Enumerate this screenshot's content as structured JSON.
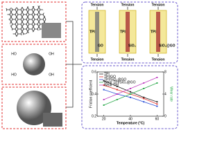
{
  "structures": {
    "hydroxyl": [
      "HO",
      "OH",
      "HO",
      "OH"
    ]
  },
  "panels": [
    {
      "top": "Tension",
      "matrix": "TPI",
      "filler": "GO",
      "bottom": "Tension"
    },
    {
      "top": "Tension",
      "matrix": "TPI",
      "filler": "SiO₂",
      "bottom": "Tension"
    },
    {
      "top": "Tension",
      "matrix": "TPI",
      "filler": "SiO₂@GO",
      "bottom": "Tension"
    }
  ],
  "chart": {
    "xlabel": "Temperature (°C)",
    "ylabel": "Friction coefficient",
    "y2label": "Wear rate",
    "x": [
      20,
      30,
      40,
      50,
      60
    ],
    "xlim": [
      15,
      65
    ],
    "xticks": [
      20,
      40,
      60
    ],
    "ylim": [
      0.2,
      0.6
    ],
    "yticks": [
      0.2,
      0.4,
      0.6
    ],
    "y2lim": [
      0,
      8
    ],
    "y2ticks": [
      0,
      4,
      8
    ],
    "series": [
      {
        "name": "TPI",
        "color": "#222222",
        "values": [
          0.52,
          0.47,
          0.42,
          0.37,
          0.33
        ]
      },
      {
        "name": "TPI/GO",
        "color": "#e0302a",
        "values": [
          0.48,
          0.44,
          0.4,
          0.36,
          0.31
        ]
      },
      {
        "name": "TPI/SiO₂@GO",
        "color": "#2a4fd8",
        "values": [
          0.44,
          0.4,
          0.37,
          0.33,
          0.29
        ]
      },
      {
        "name": "Wear TPI/SiO₂@GO",
        "color": "#2aa84a",
        "axis": "y2",
        "values": [
          2,
          3,
          4,
          5,
          6
        ]
      },
      {
        "name": "Wear TPI",
        "color": "#c040c0",
        "axis": "y2",
        "values": [
          3,
          4,
          5,
          6,
          7
        ]
      }
    ]
  }
}
